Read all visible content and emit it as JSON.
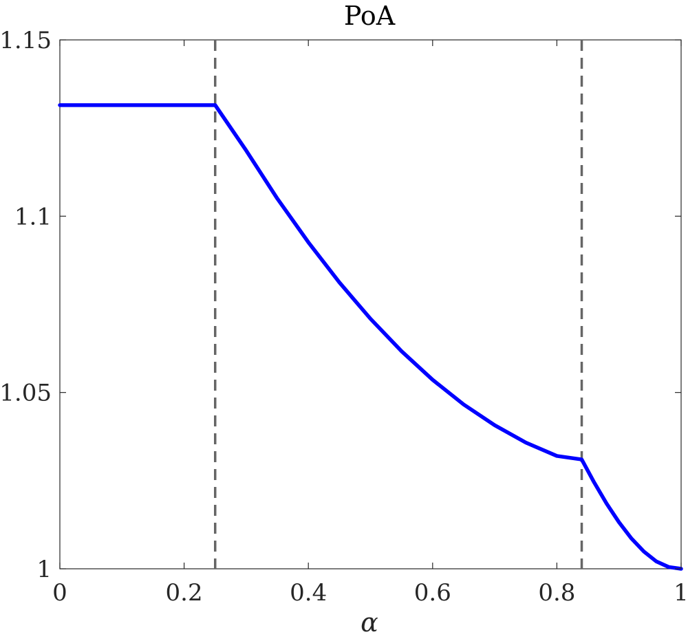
{
  "chart_data": {
    "type": "line",
    "title": "PoA",
    "xlabel": "α",
    "ylabel": "",
    "xlim": [
      0,
      1
    ],
    "ylim": [
      1,
      1.15
    ],
    "xticks": [
      0,
      0.2,
      0.4,
      0.6,
      0.8,
      1
    ],
    "xtick_labels": [
      "0",
      "0.2",
      "0.4",
      "0.6",
      "0.8",
      "1"
    ],
    "yticks": [
      1,
      1.05,
      1.1,
      1.15
    ],
    "ytick_labels": [
      "1",
      "1.05",
      "1.1",
      "1.15"
    ],
    "grid": false,
    "series": [
      {
        "color": "#0000ff",
        "x": [
          0,
          0.05,
          0.1,
          0.15,
          0.2,
          0.25,
          0.3,
          0.35,
          0.4,
          0.45,
          0.5,
          0.55,
          0.6,
          0.65,
          0.7,
          0.75,
          0.8,
          0.84,
          0.86,
          0.88,
          0.9,
          0.92,
          0.94,
          0.96,
          0.98,
          1.0
        ],
        "y": [
          1.1315,
          1.1315,
          1.1315,
          1.1315,
          1.1315,
          1.1315,
          1.1186,
          1.105,
          1.0926,
          1.0812,
          1.0709,
          1.0617,
          1.0536,
          1.0466,
          1.0407,
          1.0358,
          1.032,
          1.031,
          1.0245,
          1.0185,
          1.0132,
          1.0086,
          1.0049,
          1.0021,
          1.0005,
          1.0
        ]
      }
    ],
    "reference_lines": [
      {
        "x": 0.25,
        "style": "dashed",
        "color": "#666666"
      },
      {
        "x": 0.84,
        "style": "dashed",
        "color": "#666666"
      }
    ]
  }
}
